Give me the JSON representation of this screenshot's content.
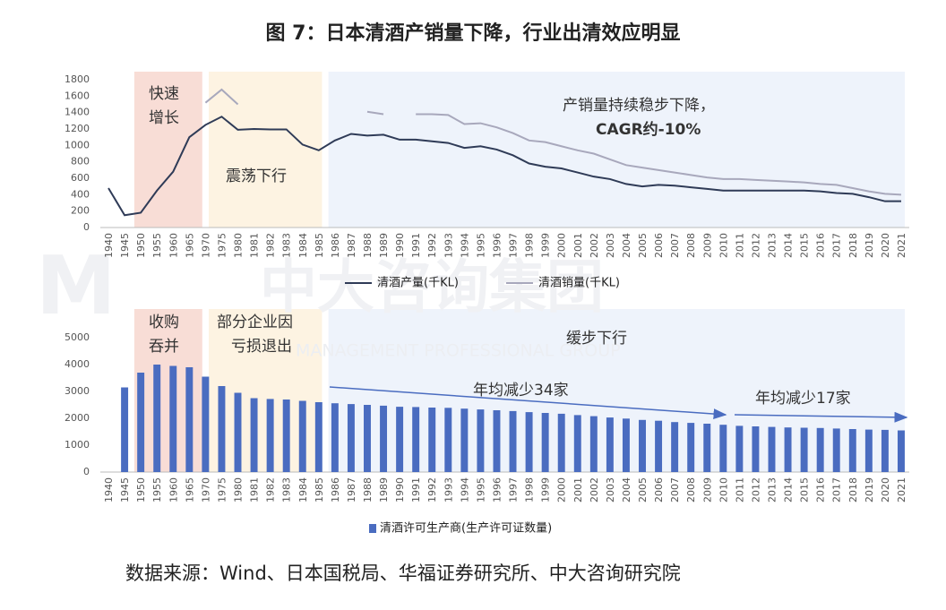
{
  "title": "图 7：日本清酒产销量下降，行业出清效应明显",
  "source": "数据来源：Wind、日本国税局、华福证券研究所、中大咨询研究院",
  "watermark": [
    "中大咨询集团",
    "MANAGEMENT PROFESSIONAL GROUP"
  ],
  "chart_data": [
    {
      "type": "line",
      "categories": [
        "1940",
        "1945",
        "1950",
        "1955",
        "1960",
        "1965",
        "1970",
        "1975",
        "1980",
        "1981",
        "1982",
        "1983",
        "1984",
        "1985",
        "1986",
        "1987",
        "1988",
        "1989",
        "1990",
        "1991",
        "1992",
        "1993",
        "1994",
        "1995",
        "1996",
        "1997",
        "1998",
        "1999",
        "2000",
        "2001",
        "2002",
        "2003",
        "2004",
        "2005",
        "2006",
        "2007",
        "2008",
        "2009",
        "2010",
        "2011",
        "2012",
        "2013",
        "2014",
        "2015",
        "2016",
        "2017",
        "2018",
        "2019",
        "2020",
        "2021"
      ],
      "ylim": [
        0,
        1800
      ],
      "yticks": [
        0,
        200,
        400,
        600,
        800,
        1000,
        1200,
        1400,
        1600,
        1800
      ],
      "series": [
        {
          "name": "清酒产量(千KL)",
          "color": "#2f3b57",
          "values": [
            480,
            150,
            180,
            450,
            680,
            1100,
            1250,
            1350,
            1190,
            1200,
            1195,
            1195,
            1010,
            940,
            1060,
            1140,
            1120,
            1130,
            1070,
            1070,
            1050,
            1030,
            970,
            990,
            950,
            880,
            780,
            740,
            720,
            670,
            620,
            590,
            530,
            500,
            520,
            510,
            490,
            470,
            450,
            450,
            450,
            450,
            450,
            450,
            440,
            420,
            410,
            370,
            320,
            320
          ]
        },
        {
          "name": "清酒销量(千KL)",
          "color": "#a8a8bc",
          "values": [
            null,
            null,
            null,
            null,
            null,
            null,
            1520,
            1680,
            1500,
            null,
            null,
            null,
            null,
            null,
            null,
            null,
            1410,
            1380,
            null,
            1380,
            1380,
            1370,
            1260,
            1270,
            1220,
            1150,
            1060,
            1040,
            990,
            940,
            900,
            830,
            760,
            730,
            700,
            670,
            640,
            610,
            590,
            590,
            580,
            570,
            560,
            550,
            530,
            520,
            480,
            440,
            410,
            400
          ]
        }
      ],
      "annotations": [
        "快速",
        "增长",
        "震荡下行",
        "产销量持续稳步下降，",
        "CAGR约-10%"
      ]
    },
    {
      "type": "bar",
      "categories": [
        "1940",
        "1945",
        "1950",
        "1955",
        "1960",
        "1965",
        "1970",
        "1975",
        "1980",
        "1981",
        "1982",
        "1983",
        "1984",
        "1985",
        "1986",
        "1987",
        "1988",
        "1989",
        "1990",
        "1991",
        "1992",
        "1993",
        "1994",
        "1995",
        "1996",
        "1997",
        "1998",
        "1999",
        "2000",
        "2001",
        "2002",
        "2003",
        "2004",
        "2005",
        "2006",
        "2007",
        "2008",
        "2009",
        "2010",
        "2011",
        "2012",
        "2013",
        "2014",
        "2015",
        "2016",
        "2017",
        "2018",
        "2019",
        "2020",
        "2021"
      ],
      "ylim": [
        0,
        5000
      ],
      "yticks": [
        0,
        1000,
        2000,
        3000,
        4000,
        5000
      ],
      "series": [
        {
          "name": "清酒许可生产商(生产许可证数量)",
          "color": "#4a6cc0",
          "values": [
            null,
            3150,
            3700,
            4000,
            3950,
            3900,
            3550,
            3200,
            2950,
            2750,
            2720,
            2700,
            2650,
            2600,
            2560,
            2530,
            2500,
            2470,
            2430,
            2420,
            2400,
            2390,
            2360,
            2330,
            2300,
            2270,
            2230,
            2200,
            2170,
            2120,
            2080,
            2030,
            1990,
            1940,
            1910,
            1860,
            1830,
            1800,
            1760,
            1720,
            1700,
            1680,
            1660,
            1650,
            1640,
            1620,
            1600,
            1580,
            1570,
            1550
          ]
        }
      ],
      "annotations": [
        "收购",
        "吞并",
        "部分企业因",
        "亏损退出",
        "缓步下行",
        "年均减少34家",
        "年均减少17家"
      ]
    }
  ]
}
